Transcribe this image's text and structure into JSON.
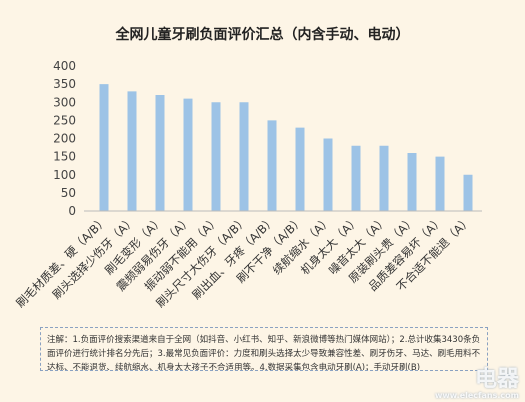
{
  "chart_data": {
    "type": "bar",
    "title": "全网儿童牙刷负面评价汇总（内含手动、电动）",
    "categories": [
      "刷毛材质差、硬（A/B）",
      "刷头选择少伤牙（A）",
      "刷毛变形（A）",
      "震频弱易伤牙（A）",
      "振动弱不能用（A）",
      "刷头尺寸大伤牙（A/B）",
      "刷出血、牙疼（A/B）",
      "刷不干净（A/B）",
      "续航缩水（A）",
      "机身太大（A）",
      "噪音太大（A）",
      "原装刷头贵（A）",
      "品质差容易坏（A）",
      "不合适不能退（A）"
    ],
    "values": [
      350,
      330,
      320,
      310,
      300,
      300,
      250,
      230,
      200,
      180,
      180,
      160,
      150,
      100
    ],
    "ylim": [
      0,
      400
    ],
    "yticks": [
      0,
      50,
      100,
      150,
      200,
      250,
      300,
      350,
      400
    ],
    "bar_color": "#9dc3e6",
    "grid": false,
    "legend": "none"
  },
  "note": "注解：1.负面评价搜索渠道来自于全网（如抖音、小红书、知乎、新浪微博等热门媒体网站）；2.总计收集3430条负面评价进行统计排名分先后；3.最常见负面评价：力度和刷头选择太少导致兼容性差、刷牙伤牙、马达、刷毛用料不达标、不能退货、续航缩水、机身太大孩子不合适用等。4.数据采集包含电动牙刷(A)；手动牙刷(B)",
  "watermark": {
    "main": "电器",
    "url": "www.elecfans.com"
  }
}
